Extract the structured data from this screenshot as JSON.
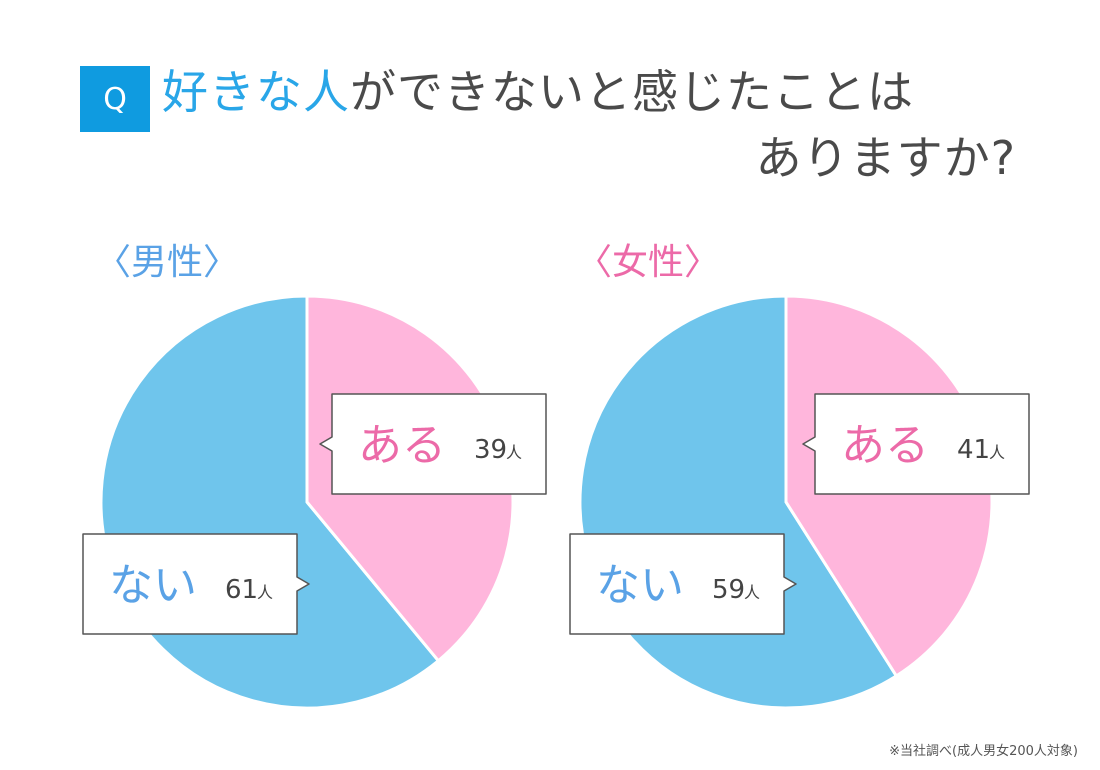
{
  "question": {
    "badge": "Q",
    "highlight": "好きな人",
    "text_rest": "ができないと感じたことは",
    "line2": "ありますか?"
  },
  "colors": {
    "yes": "#ffb6dc",
    "no": "#6fc5ec",
    "yes_text": "#ec6aa8",
    "no_text": "#5aa2e6",
    "count_text": "#444444",
    "badge_bg": "#0f9be0",
    "male_label": "#5aa2e6",
    "female_label": "#ec6aa8"
  },
  "chart_data": [
    {
      "type": "pie",
      "title": "〈男性〉",
      "unit": "人",
      "slices": [
        {
          "label": "ある",
          "value": 39
        },
        {
          "label": "ない",
          "value": 61
        }
      ]
    },
    {
      "type": "pie",
      "title": "〈女性〉",
      "unit": "人",
      "slices": [
        {
          "label": "ある",
          "value": 41
        },
        {
          "label": "ない",
          "value": 59
        }
      ]
    }
  ],
  "footnote": "※当社調べ(成人男女200人対象)"
}
